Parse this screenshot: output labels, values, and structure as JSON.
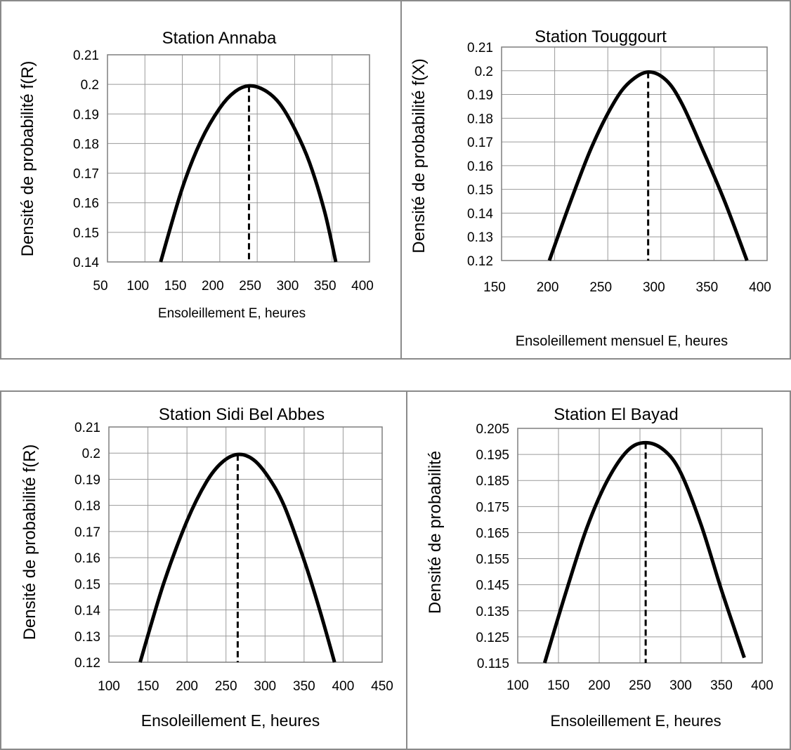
{
  "chart_data": [
    {
      "type": "line",
      "title": "Station Annaba",
      "xlabel": "Ensoleillement E, heures",
      "ylabel": "Densité de probabilité  f(R)",
      "xlim": [
        50,
        400
      ],
      "ylim": [
        0.14,
        0.21
      ],
      "xticks": [
        "50",
        "100",
        "150",
        "200",
        "250",
        "300",
        "350",
        "400"
      ],
      "yticks": [
        "0.14",
        "0.15",
        "0.16",
        "0.17",
        "0.18",
        "0.19",
        "0.2",
        "0.21"
      ],
      "grid": true,
      "series": [
        {
          "x": [
            121,
            150,
            175,
            200,
            220,
            239,
            260,
            280,
            300,
            320,
            340,
            355
          ],
          "y": [
            0.14,
            0.165,
            0.181,
            0.192,
            0.1975,
            0.1995,
            0.198,
            0.1935,
            0.185,
            0.1735,
            0.157,
            0.14
          ]
        }
      ],
      "mode_line": {
        "x": 239,
        "y": 0.1995,
        "style": "dashed"
      }
    },
    {
      "type": "line",
      "title": "Station Touggourt",
      "xlabel": "Ensoleillement mensuel  E, heures",
      "ylabel": "Densité de probabilité  f(X)",
      "xlim": [
        150,
        400
      ],
      "ylim": [
        0.12,
        0.21
      ],
      "xticks": [
        "150",
        "200",
        "250",
        "300",
        "350",
        "400"
      ],
      "yticks": [
        "0.12",
        "0.13",
        "0.14",
        "0.15",
        "0.16",
        "0.17",
        "0.18",
        "0.19",
        "0.2",
        "0.21"
      ],
      "grid": true,
      "series": [
        {
          "x": [
            195,
            215,
            235,
            255,
            270,
            288,
            305,
            320,
            340,
            360,
            381
          ],
          "y": [
            0.12,
            0.145,
            0.168,
            0.186,
            0.195,
            0.1995,
            0.196,
            0.186,
            0.166,
            0.145,
            0.12
          ]
        }
      ],
      "mode_line": {
        "x": 288,
        "y": 0.1995,
        "style": "dashed"
      }
    },
    {
      "type": "line",
      "title": "Station Sidi Bel Abbes",
      "xlabel": "Ensoleillement E, heures",
      "ylabel": "Densité de probabilité  f(R)",
      "xlim": [
        100,
        450
      ],
      "ylim": [
        0.12,
        0.21
      ],
      "xticks": [
        "100",
        "150",
        "200",
        "250",
        "300",
        "350",
        "400",
        "450"
      ],
      "yticks": [
        "0.12",
        "0.13",
        "0.14",
        "0.15",
        "0.16",
        "0.17",
        "0.18",
        "0.19",
        "0.2",
        "0.21"
      ],
      "grid": true,
      "series": [
        {
          "x": [
            140,
            170,
            200,
            225,
            245,
            265,
            285,
            305,
            325,
            350,
            370,
            389
          ],
          "y": [
            0.12,
            0.15,
            0.174,
            0.189,
            0.1965,
            0.1995,
            0.1975,
            0.1905,
            0.1795,
            0.159,
            0.14,
            0.12
          ]
        }
      ],
      "mode_line": {
        "x": 265,
        "y": 0.1995,
        "style": "dashed"
      }
    },
    {
      "type": "line",
      "title": "Station El Bayad",
      "xlabel": "Ensoleillement E, heures",
      "ylabel": "Densité de probabilité",
      "xlim": [
        100,
        400
      ],
      "ylim": [
        0.115,
        0.205
      ],
      "xticks": [
        "100",
        "150",
        "200",
        "250",
        "300",
        "350",
        "400"
      ],
      "yticks": [
        "0.115",
        "0.125",
        "0.135",
        "0.145",
        "0.155",
        "0.165",
        "0.175",
        "0.185",
        "0.195",
        "0.205"
      ],
      "grid": true,
      "series": [
        {
          "x": [
            133,
            160,
            185,
            210,
            235,
            257,
            280,
            300,
            325,
            350,
            378
          ],
          "y": [
            0.115,
            0.143,
            0.167,
            0.185,
            0.1965,
            0.1995,
            0.1965,
            0.188,
            0.168,
            0.143,
            0.117
          ]
        }
      ],
      "mode_line": {
        "x": 257,
        "y": 0.1995,
        "style": "dashed"
      }
    }
  ]
}
